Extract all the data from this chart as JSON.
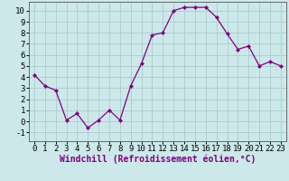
{
  "x": [
    0,
    1,
    2,
    3,
    4,
    5,
    6,
    7,
    8,
    9,
    10,
    11,
    12,
    13,
    14,
    15,
    16,
    17,
    18,
    19,
    20,
    21,
    22,
    23
  ],
  "y": [
    4.2,
    3.2,
    2.8,
    0.1,
    0.7,
    -0.6,
    0.1,
    1.0,
    0.1,
    3.2,
    5.2,
    7.8,
    8.0,
    10.0,
    10.3,
    10.3,
    10.3,
    9.4,
    7.9,
    6.5,
    6.8,
    5.0,
    5.4,
    5.0
  ],
  "line_color": "#800080",
  "marker": "D",
  "marker_size": 2.0,
  "bg_color": "#cce8ea",
  "grid_color": "#aacccc",
  "xlabel": "Windchill (Refroidissement éolien,°C)",
  "xlabel_fontsize": 7,
  "tick_fontsize": 6.5,
  "xlim": [
    -0.5,
    23.5
  ],
  "ylim": [
    -1.8,
    10.8
  ],
  "yticks": [
    -1,
    0,
    1,
    2,
    3,
    4,
    5,
    6,
    7,
    8,
    9,
    10
  ],
  "xticks": [
    0,
    1,
    2,
    3,
    4,
    5,
    6,
    7,
    8,
    9,
    10,
    11,
    12,
    13,
    14,
    15,
    16,
    17,
    18,
    19,
    20,
    21,
    22,
    23
  ]
}
